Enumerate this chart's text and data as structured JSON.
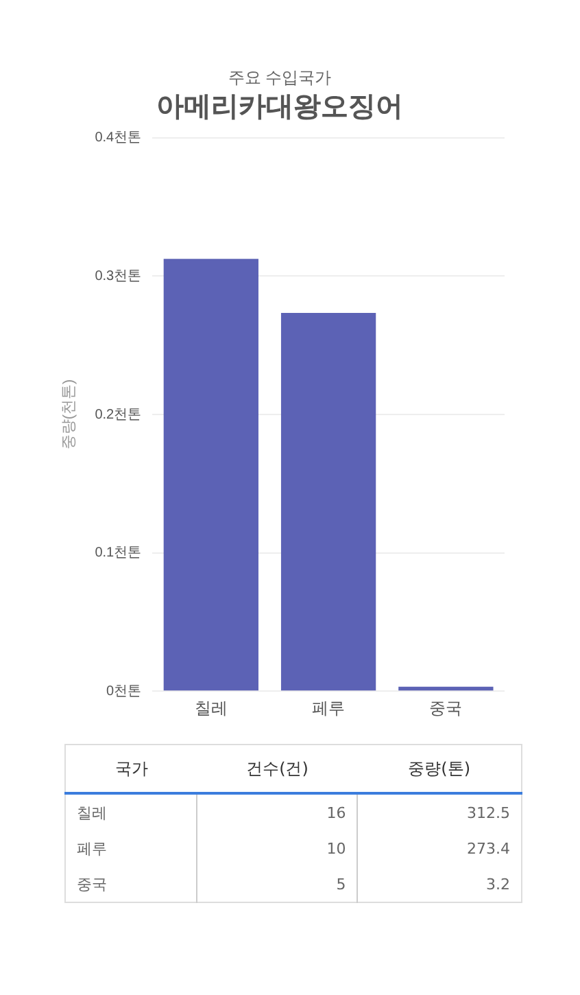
{
  "chart_data": {
    "type": "bar",
    "subtitle": "주요 수입국가",
    "title": "아메리카대왕오징어",
    "ylabel": "중량(천톤)",
    "categories": [
      "칠레",
      "페루",
      "중국"
    ],
    "series": [
      {
        "name": "중량(톤)",
        "color": "#5c62b5",
        "values": [
          0.3125,
          0.2734,
          0.0032
        ]
      }
    ],
    "ylim": [
      0,
      0.4
    ],
    "yticks": [
      {
        "value": 0,
        "label": "0천톤"
      },
      {
        "value": 0.1,
        "label": "0.1천톤"
      },
      {
        "value": 0.2,
        "label": "0.2천톤"
      },
      {
        "value": 0.3,
        "label": "0.3천톤"
      },
      {
        "value": 0.4,
        "label": "0.4천톤"
      }
    ],
    "grid": "y",
    "annotations": [
      "국가",
      "건수(건)",
      "16",
      "312.5",
      "10",
      "273.4",
      "5",
      "3.2"
    ]
  }
}
